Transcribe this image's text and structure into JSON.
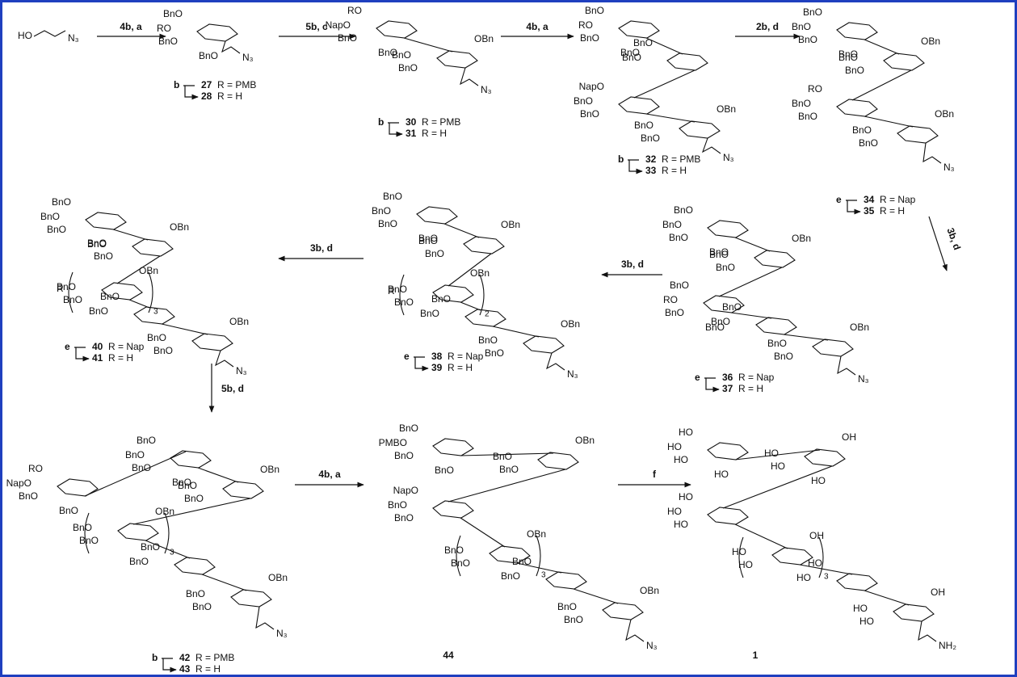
{
  "start": {
    "ho": "HO",
    "n3": "N₃"
  },
  "arrows": [
    {
      "label": "4b, a"
    },
    {
      "label": "5b, c"
    },
    {
      "label": "4b, a"
    },
    {
      "label": "2b, d"
    },
    {
      "label": "3b, d"
    },
    {
      "label": "3b, d"
    },
    {
      "label": "3b, d"
    },
    {
      "label": "5b, d"
    },
    {
      "label": "4b, a"
    },
    {
      "label": "f"
    }
  ],
  "compounds": [
    {
      "step": "b",
      "products": [
        {
          "number": "27",
          "r": "R = PMB"
        },
        {
          "number": "28",
          "r": "R = H"
        }
      ],
      "rings": [
        [
          "BnO",
          "RO",
          "BnO",
          "BnO"
        ]
      ],
      "linker": "N₃"
    },
    {
      "step": "b",
      "products": [
        {
          "number": "30",
          "r": "R = PMB"
        },
        {
          "number": "31",
          "r": "R = H"
        }
      ],
      "rings": [
        [
          "RO",
          "NapO",
          "BnO",
          "BnO"
        ],
        [
          "OBn",
          "BnO",
          "BnO"
        ]
      ],
      "linker": "N₃"
    },
    {
      "step": "b",
      "products": [
        {
          "number": "32",
          "r": "R = PMB"
        },
        {
          "number": "33",
          "r": "R = H"
        }
      ],
      "rings": [
        [
          "BnO",
          "RO",
          "BnO",
          "BnO"
        ],
        [
          "BnO",
          "BnO"
        ],
        [
          "NapO",
          "BnO",
          "BnO"
        ],
        [
          "OBn",
          "BnO",
          "BnO"
        ]
      ],
      "linker": "N₃"
    },
    {
      "step": "e",
      "products": [
        {
          "number": "34",
          "r": "R = Nap"
        },
        {
          "number": "35",
          "r": "R = H"
        }
      ],
      "rings": [
        [
          "BnO",
          "BnO",
          "BnO",
          "BnO"
        ],
        [
          "OBn",
          "BnO",
          "BnO"
        ],
        [
          "RO",
          "BnO",
          "BnO"
        ],
        [
          "OBn",
          "BnO",
          "BnO"
        ]
      ],
      "linker": "N₃"
    },
    {
      "step": "e",
      "products": [
        {
          "number": "36",
          "r": "R = Nap"
        },
        {
          "number": "37",
          "r": "R = H"
        }
      ],
      "rings": [
        [
          "BnO",
          "BnO",
          "BnO",
          "BnO"
        ],
        [
          "OBn",
          "BnO",
          "BnO"
        ],
        [
          "BnO",
          "RO",
          "BnO",
          "BnO"
        ],
        [
          "BnO",
          "BnO"
        ],
        [
          "OBn",
          "BnO",
          "BnO"
        ]
      ],
      "linker": "N₃"
    },
    {
      "step": "e",
      "products": [
        {
          "number": "38",
          "r": "R = Nap"
        },
        {
          "number": "39",
          "r": "R = H"
        }
      ],
      "rings": [
        [
          "BnO",
          "BnO",
          "BnO",
          "BnO"
        ],
        [
          "OBn",
          "BnO",
          "BnO"
        ],
        [
          "OBn",
          "BnO",
          "BnO"
        ],
        [
          "BnO",
          "BnO"
        ],
        [
          "OBn",
          "BnO",
          "BnO"
        ]
      ],
      "linker": "N₃",
      "r_group": "R",
      "repeat": "2"
    },
    {
      "step": "e",
      "products": [
        {
          "number": "40",
          "r": "R = Nap"
        },
        {
          "number": "41",
          "r": "R = H"
        }
      ],
      "rings": [
        [
          "BnO",
          "BnO",
          "BnO",
          "BnO"
        ],
        [
          "OBn",
          "BnO",
          "BnO"
        ],
        [
          "OBn",
          "BnO",
          "BnO"
        ],
        [
          "BnO",
          "BnO"
        ],
        [
          "OBn",
          "BnO",
          "BnO"
        ]
      ],
      "linker": "N₃",
      "r_group": "R",
      "repeat": "3"
    },
    {
      "step": "b",
      "products": [
        {
          "number": "42",
          "r": "R = PMB"
        },
        {
          "number": "43",
          "r": "R = H"
        }
      ],
      "rings": [
        [
          "RO",
          "NapO",
          "BnO",
          "BnO"
        ],
        [
          "BnO",
          "BnO",
          "BnO",
          "BnO"
        ],
        [
          "OBn",
          "BnO",
          "BnO"
        ],
        [
          "OBn",
          "BnO",
          "BnO"
        ],
        [
          "BnO",
          "BnO"
        ],
        [
          "OBn",
          "BnO",
          "BnO"
        ]
      ],
      "linker": "N₃",
      "repeat": "3"
    },
    {
      "products": [
        {
          "number": "44"
        }
      ],
      "rings": [
        [
          "BnO",
          "PMBO",
          "BnO",
          "BnO"
        ],
        [
          "OBn",
          "BnO",
          "BnO"
        ],
        [
          "NapO",
          "BnO",
          "BnO"
        ],
        [
          "OBn",
          "BnO",
          "BnO"
        ],
        [
          "BnO",
          "BnO"
        ],
        [
          "OBn",
          "BnO",
          "BnO"
        ]
      ],
      "linker": "N₃",
      "repeat": "3"
    },
    {
      "products": [
        {
          "number": "1"
        }
      ],
      "rings": [
        [
          "HO",
          "HO",
          "HO",
          "HO"
        ],
        [
          "OH",
          "HO",
          "HO",
          "HO"
        ],
        [
          "HO",
          "HO",
          "HO"
        ],
        [
          "OH",
          "HO",
          "HO"
        ],
        [
          "HO",
          "HO"
        ],
        [
          "OH",
          "HO",
          "HO"
        ]
      ],
      "linker": "NH₂",
      "repeat": "3"
    }
  ]
}
